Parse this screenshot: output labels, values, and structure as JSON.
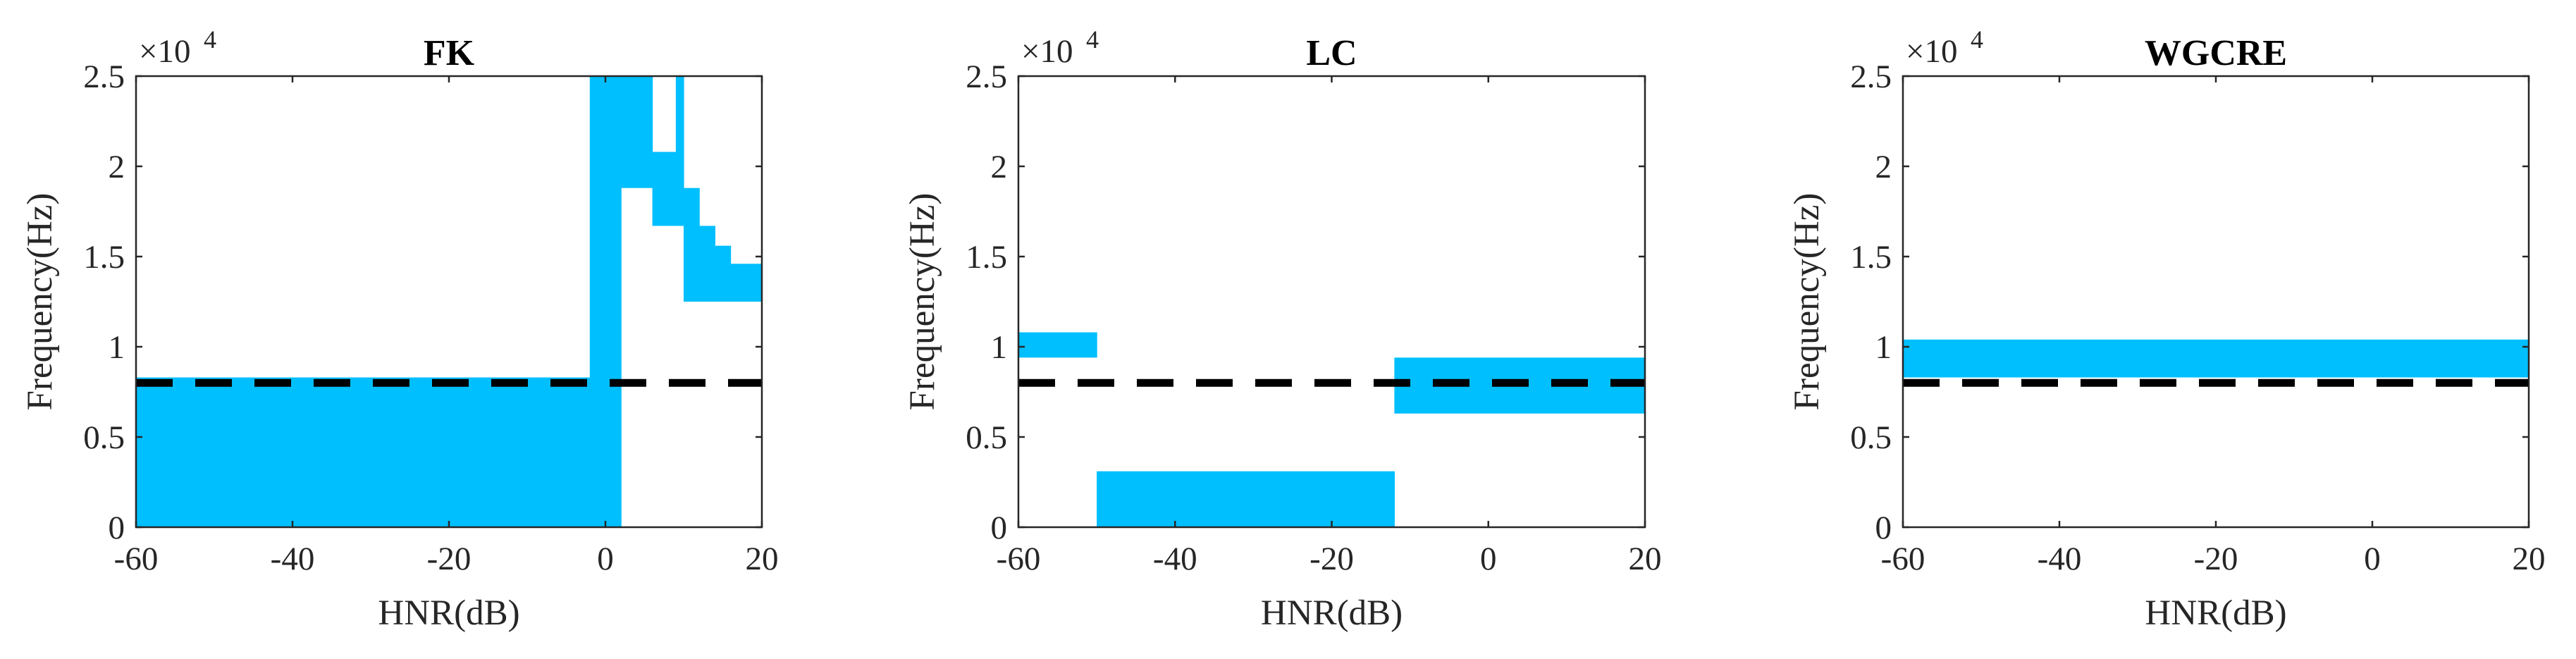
{
  "figure": {
    "band_color": "#00BFFF",
    "reference_line_color": "#000000",
    "axis_color": "#262626"
  },
  "chart_data": [
    {
      "type": "area",
      "title": "FK",
      "xlabel": "HNR(dB)",
      "ylabel": "Frequency(Hz)",
      "y_exponent_label": "×10",
      "y_exponent_power": "4",
      "xlim": [
        -60,
        20
      ],
      "ylim": [
        0,
        25000
      ],
      "x_ticks": [
        -60,
        -40,
        -20,
        0,
        20
      ],
      "x_tick_labels": [
        "-60",
        "-40",
        "-20",
        "0",
        "20"
      ],
      "y_ticks": [
        0,
        5000,
        10000,
        15000,
        20000,
        25000
      ],
      "y_tick_labels": [
        "0",
        "0.5",
        "1",
        "1.5",
        "2",
        "2.5"
      ],
      "reference_line": {
        "y": 8000,
        "style": "dashed"
      },
      "grid": false,
      "bands": [
        {
          "x0": -60,
          "x1": -2,
          "low": 0,
          "high": 8300
        },
        {
          "x0": -2,
          "x1": 2,
          "low": 0,
          "high": 25000
        },
        {
          "x0": 2,
          "x1": 6,
          "low": 18800,
          "high": 25000
        },
        {
          "x0": 6,
          "x1": 9,
          "low": 16700,
          "high": 20800
        },
        {
          "x0": 9,
          "x1": 10,
          "low": 16700,
          "high": 25000
        },
        {
          "x0": 10,
          "x1": 12,
          "low": 12500,
          "high": 18800
        },
        {
          "x0": 12,
          "x1": 14,
          "low": 12500,
          "high": 16700
        },
        {
          "x0": 14,
          "x1": 16,
          "low": 12500,
          "high": 15600
        },
        {
          "x0": 16,
          "x1": 20,
          "low": 12500,
          "high": 14600
        }
      ]
    },
    {
      "type": "area",
      "title": "LC",
      "xlabel": "HNR(dB)",
      "ylabel": "Frequency(Hz)",
      "y_exponent_label": "×10",
      "y_exponent_power": "4",
      "xlim": [
        -60,
        20
      ],
      "ylim": [
        0,
        25000
      ],
      "x_ticks": [
        -60,
        -40,
        -20,
        0,
        20
      ],
      "x_tick_labels": [
        "-60",
        "-40",
        "-20",
        "0",
        "20"
      ],
      "y_ticks": [
        0,
        5000,
        10000,
        15000,
        20000,
        25000
      ],
      "y_tick_labels": [
        "0",
        "0.5",
        "1",
        "1.5",
        "2",
        "2.5"
      ],
      "reference_line": {
        "y": 8000,
        "style": "dashed"
      },
      "grid": false,
      "bands": [
        {
          "x0": -60,
          "x1": -50,
          "low": 9400,
          "high": 10800
        },
        {
          "x0": -50,
          "x1": -12,
          "low": 0,
          "high": 3100
        },
        {
          "x0": -12,
          "x1": 20,
          "low": 6300,
          "high": 9400
        }
      ]
    },
    {
      "type": "area",
      "title": "WGCRE",
      "xlabel": "HNR(dB)",
      "ylabel": "Frequency(Hz)",
      "y_exponent_label": "×10",
      "y_exponent_power": "4",
      "xlim": [
        -60,
        20
      ],
      "ylim": [
        0,
        25000
      ],
      "x_ticks": [
        -60,
        -40,
        -20,
        0,
        20
      ],
      "x_tick_labels": [
        "-60",
        "-40",
        "-20",
        "0",
        "20"
      ],
      "y_ticks": [
        0,
        5000,
        10000,
        15000,
        20000,
        25000
      ],
      "y_tick_labels": [
        "0",
        "0.5",
        "1",
        "1.5",
        "2",
        "2.5"
      ],
      "reference_line": {
        "y": 8000,
        "style": "dashed"
      },
      "grid": false,
      "bands": [
        {
          "x0": -60,
          "x1": 20,
          "low": 8300,
          "high": 10400
        }
      ]
    }
  ]
}
